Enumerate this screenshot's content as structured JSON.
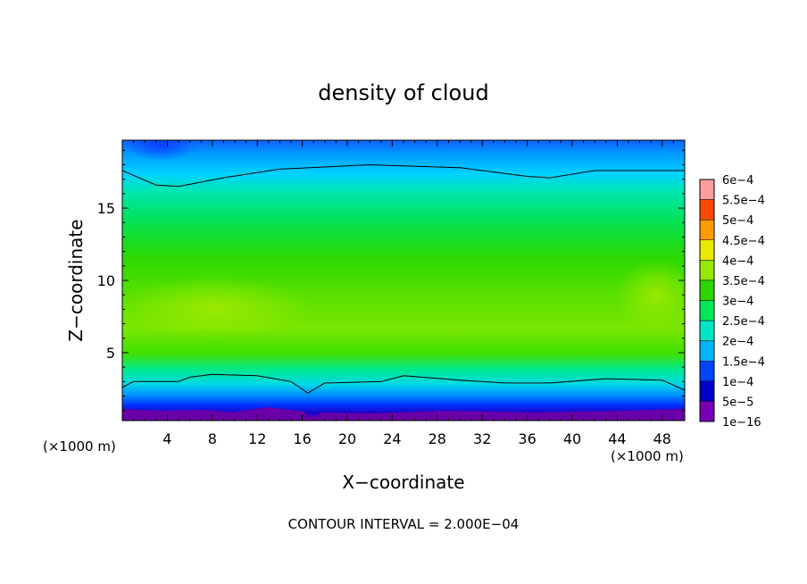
{
  "chart_data": {
    "type": "heatmap",
    "title": "density of cloud",
    "xlabel": "X−coordinate",
    "ylabel": "Z−coordinate",
    "x_unit_left": "(×1000 m)",
    "x_unit_right": "(×1000 m)",
    "footer": "CONTOUR INTERVAL = 2.000E−04",
    "xlim": [
      0,
      50
    ],
    "ylim": [
      0.3,
      19.7
    ],
    "x_ticks": [
      {
        "value": 4,
        "label": "4"
      },
      {
        "value": 8,
        "label": "8"
      },
      {
        "value": 12,
        "label": "12"
      },
      {
        "value": 16,
        "label": "16"
      },
      {
        "value": 20,
        "label": "20"
      },
      {
        "value": 24,
        "label": "24"
      },
      {
        "value": 28,
        "label": "28"
      },
      {
        "value": 32,
        "label": "32"
      },
      {
        "value": 36,
        "label": "36"
      },
      {
        "value": 40,
        "label": "40"
      },
      {
        "value": 44,
        "label": "44"
      },
      {
        "value": 48,
        "label": "48"
      }
    ],
    "y_ticks": [
      {
        "value": 5,
        "label": "5"
      },
      {
        "value": 10,
        "label": "10"
      },
      {
        "value": 15,
        "label": "15"
      }
    ],
    "colorbar": {
      "levels": [
        {
          "label": "6e−4",
          "color": "#ff9c9c"
        },
        {
          "label": "5.5e−4",
          "color": "#ff1e1e"
        },
        {
          "label": "5e−4",
          "color": "#ff4a00"
        },
        {
          "label": "4.5e−4",
          "color": "#ff9a00"
        },
        {
          "label": "4e−4",
          "color": "#e8ea00"
        },
        {
          "label": "3.5e−4",
          "color": "#96e800"
        },
        {
          "label": "3e−4",
          "color": "#2cd600"
        },
        {
          "label": "2.5e−4",
          "color": "#00e85a"
        },
        {
          "label": "2e−4",
          "color": "#00e6c8"
        },
        {
          "label": "1.5e−4",
          "color": "#00b4ff"
        },
        {
          "label": "1e−4",
          "color": "#0046ff"
        },
        {
          "label": "5e−5",
          "color": "#0000c8"
        },
        {
          "label": "1e−16",
          "color": "#7800b4"
        }
      ]
    },
    "contour_lines": [
      {
        "name": "upper",
        "points": [
          [
            0,
            17.6
          ],
          [
            3,
            16.6
          ],
          [
            5,
            16.5
          ],
          [
            9,
            17.1
          ],
          [
            14,
            17.7
          ],
          [
            22,
            18.0
          ],
          [
            30,
            17.8
          ],
          [
            36,
            17.2
          ],
          [
            38,
            17.1
          ],
          [
            42,
            17.6
          ],
          [
            46,
            17.6
          ],
          [
            50,
            17.6
          ]
        ]
      },
      {
        "name": "lower",
        "points": [
          [
            0,
            2.6
          ],
          [
            1,
            3.0
          ],
          [
            5,
            3.0
          ],
          [
            6,
            3.3
          ],
          [
            8,
            3.5
          ],
          [
            12,
            3.4
          ],
          [
            15,
            3.0
          ],
          [
            16.5,
            2.2
          ],
          [
            18,
            2.9
          ],
          [
            23,
            3.0
          ],
          [
            25,
            3.4
          ],
          [
            30,
            3.1
          ],
          [
            34,
            2.9
          ],
          [
            38,
            2.9
          ],
          [
            43,
            3.2
          ],
          [
            48,
            3.1
          ],
          [
            50,
            2.4
          ]
        ]
      }
    ]
  }
}
